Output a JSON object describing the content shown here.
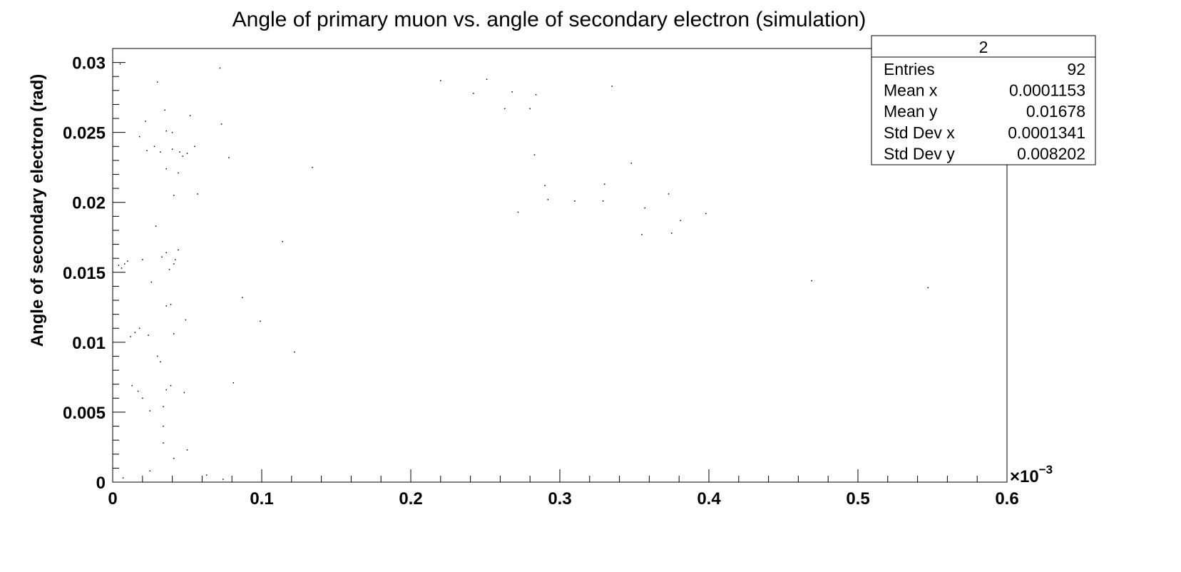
{
  "chart_data": {
    "type": "scatter",
    "title": "Angle of primary muon vs. angle of secondary electron (simulation)",
    "xlabel": "",
    "ylabel": "Angle of secondary electron (rad)",
    "x_exponent_label": "×10",
    "x_exponent_power": "−3",
    "xlim": [
      0,
      0.0006
    ],
    "ylim": [
      0,
      0.031
    ],
    "x_ticks": [
      {
        "value": 0,
        "label": "0"
      },
      {
        "value": 0.0001,
        "label": "0.1"
      },
      {
        "value": 0.0002,
        "label": "0.2"
      },
      {
        "value": 0.0003,
        "label": "0.3"
      },
      {
        "value": 0.0004,
        "label": "0.4"
      },
      {
        "value": 0.0005,
        "label": "0.5"
      },
      {
        "value": 0.0006,
        "label": "0.6"
      }
    ],
    "y_ticks": [
      {
        "value": 0,
        "label": "0"
      },
      {
        "value": 0.005,
        "label": "0.005"
      },
      {
        "value": 0.01,
        "label": "0.01"
      },
      {
        "value": 0.015,
        "label": "0.015"
      },
      {
        "value": 0.02,
        "label": "0.02"
      },
      {
        "value": 0.025,
        "label": "0.025"
      },
      {
        "value": 0.03,
        "label": "0.03"
      }
    ],
    "grid": false,
    "marker_color": "#000000",
    "stats_box": {
      "title": "2",
      "rows": [
        {
          "label": "Entries",
          "value": "92"
        },
        {
          "label": "Mean x",
          "value": "0.0001153"
        },
        {
          "label": "Mean y",
          "value": "0.01678"
        },
        {
          "label": "Std Dev x",
          "value": "0.0001341"
        },
        {
          "label": "Std Dev y",
          "value": "0.008202"
        }
      ]
    },
    "points": [
      [
        5e-06,
        0.0299
      ],
      [
        4e-06,
        0.0155
      ],
      [
        6e-06,
        0.0153
      ],
      [
        8e-06,
        0.0156
      ],
      [
        1e-05,
        0.0158
      ],
      [
        1.2e-05,
        0.0104
      ],
      [
        1.5e-05,
        0.0107
      ],
      [
        1.8e-05,
        0.011
      ],
      [
        1.3e-05,
        0.0069
      ],
      [
        1.7e-05,
        0.0065
      ],
      [
        2e-05,
        0.006
      ],
      [
        7e-06,
        0.0003
      ],
      [
        1.8e-05,
        0.0247
      ],
      [
        2e-05,
        0.0159
      ],
      [
        2.2e-05,
        0.0258
      ],
      [
        2.3e-05,
        0.0237
      ],
      [
        2.4e-05,
        0.0105
      ],
      [
        2.6e-05,
        0.0143
      ],
      [
        2.5e-05,
        0.0051
      ],
      [
        2.5e-05,
        0.0008
      ],
      [
        2.8e-05,
        0.024
      ],
      [
        3e-05,
        0.0286
      ],
      [
        2.9e-05,
        0.0183
      ],
      [
        3e-05,
        0.009
      ],
      [
        3.2e-05,
        0.0086
      ],
      [
        3.2e-05,
        0.0236
      ],
      [
        3.3e-05,
        0.0161
      ],
      [
        3.4e-05,
        0.0054
      ],
      [
        3.4e-05,
        0.004
      ],
      [
        3.4e-05,
        0.0028
      ],
      [
        3.5e-05,
        0.0266
      ],
      [
        3.6e-05,
        0.0251
      ],
      [
        3.6e-05,
        0.0224
      ],
      [
        3.6e-05,
        0.0164
      ],
      [
        3.6e-05,
        0.0126
      ],
      [
        3.6e-05,
        0.0066
      ],
      [
        3.8e-05,
        0.0152
      ],
      [
        3.9e-05,
        0.0127
      ],
      [
        3.9e-05,
        0.0069
      ],
      [
        4e-05,
        0.0238
      ],
      [
        4e-05,
        0.025
      ],
      [
        4.1e-05,
        0.0205
      ],
      [
        4.1e-05,
        0.0156
      ],
      [
        4.1e-05,
        0.0106
      ],
      [
        4.1e-05,
        0.0017
      ],
      [
        4.2e-05,
        0.0159
      ],
      [
        4.4e-05,
        0.0166
      ],
      [
        4.4e-05,
        0.0221
      ],
      [
        4.5e-05,
        0.0236
      ],
      [
        4.7e-05,
        0.0233
      ],
      [
        4.8e-05,
        0.0064
      ],
      [
        4.9e-05,
        0.0116
      ],
      [
        5e-05,
        0.0235
      ],
      [
        5e-05,
        0.0023
      ],
      [
        5.2e-05,
        0.0262
      ],
      [
        5.5e-05,
        0.024
      ],
      [
        5.7e-05,
        0.0206
      ],
      [
        6.3e-05,
        0.0005
      ],
      [
        7.2e-05,
        0.0296
      ],
      [
        7.3e-05,
        0.0256
      ],
      [
        7.4e-05,
        0.0002
      ],
      [
        7.8e-05,
        0.0232
      ],
      [
        8.1e-05,
        0.0071
      ],
      [
        8.7e-05,
        0.0132
      ],
      [
        9.9e-05,
        0.0115
      ],
      [
        0.000114,
        0.0172
      ],
      [
        0.000122,
        0.0093
      ],
      [
        0.000134,
        0.0225
      ],
      [
        0.00022,
        0.0287
      ],
      [
        0.000242,
        0.0278
      ],
      [
        0.000251,
        0.0288
      ],
      [
        0.000263,
        0.0267
      ],
      [
        0.000268,
        0.0279
      ],
      [
        0.000272,
        0.0193
      ],
      [
        0.00028,
        0.0267
      ],
      [
        0.000283,
        0.0234
      ],
      [
        0.000284,
        0.0277
      ],
      [
        0.00029,
        0.0212
      ],
      [
        0.000292,
        0.0202
      ],
      [
        0.00031,
        0.0201
      ],
      [
        0.000329,
        0.0201
      ],
      [
        0.00033,
        0.0213
      ],
      [
        0.000335,
        0.0283
      ],
      [
        0.000348,
        0.0228
      ],
      [
        0.000355,
        0.0177
      ],
      [
        0.000357,
        0.0196
      ],
      [
        0.000373,
        0.0206
      ],
      [
        0.000375,
        0.0178
      ],
      [
        0.000381,
        0.0187
      ],
      [
        0.000398,
        0.0192
      ],
      [
        0.000469,
        0.0144
      ],
      [
        0.000547,
        0.0139
      ]
    ]
  }
}
